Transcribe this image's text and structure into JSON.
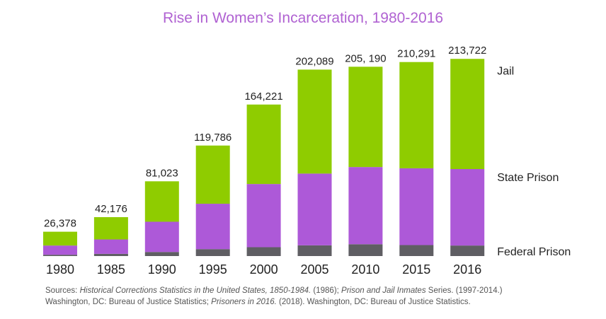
{
  "chart_data": {
    "type": "bar",
    "stacked": true,
    "title": "Rise in Women’s Incarceration, 1980-2016",
    "categories": [
      "1980",
      "1985",
      "1990",
      "1995",
      "2000",
      "2005",
      "2010",
      "2015",
      "2016"
    ],
    "totals": [
      "26,378",
      "42,176",
      "81,023",
      "119,786",
      "164,221",
      "202,089",
      "205, 190",
      "210,291",
      "213,722"
    ],
    "series": [
      {
        "name": "Federal Prison",
        "color": "#5f5e63",
        "values": [
          1400,
          2400,
          4400,
          7500,
          9600,
          11600,
          12800,
          11900,
          11400
        ]
      },
      {
        "name": "State Prison",
        "color": "#ad59d8",
        "values": [
          10000,
          15600,
          32800,
          49200,
          68500,
          77800,
          83700,
          83200,
          82900
        ]
      },
      {
        "name": "Jail",
        "color": "#8fcc00",
        "values": [
          14978,
          24176,
          43823,
          63086,
          86121,
          112689,
          108690,
          115191,
          119422
        ]
      }
    ],
    "ylim": [
      0,
      230000
    ],
    "xlabel": "",
    "ylabel": "",
    "grid": false,
    "legend": "right, labels aligned to segments"
  },
  "source": {
    "prefix": "Sources: ",
    "title1": "Historical Corrections Statistics in the United States, 1850-1984.",
    "part2": " (1986); ",
    "title2": "Prison and Jail Inmates",
    "part3": " Series. (1997-2014.)",
    "line2a": "Washington, DC: Bureau of Justice Statistics; ",
    "title3": "Prisoners in 2016.",
    "line2b": " (2018). Washington, DC: Bureau of Justice Statistics."
  }
}
